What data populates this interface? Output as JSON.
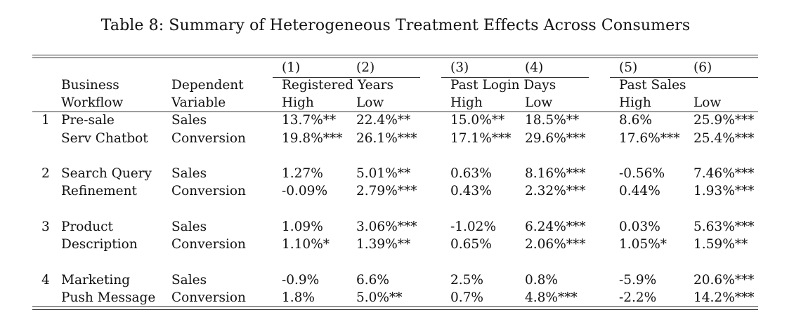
{
  "caption": "Table 8: Summary of Heterogeneous Treatment Effects Across Consumers",
  "header": {
    "col_numbers": [
      "(1)",
      "(2)",
      "(3)",
      "(4)",
      "(5)",
      "(6)"
    ],
    "business_workflow": [
      "Business",
      "Workflow"
    ],
    "dependent_variable": [
      "Dependent",
      "Variable"
    ],
    "groups": [
      "Registered Years",
      "Past Login Days",
      "Past Sales"
    ],
    "levels": [
      "High",
      "Low",
      "High",
      "Low",
      "High",
      "Low"
    ]
  },
  "rows": [
    {
      "index": "1",
      "workflow": "Pre-sale",
      "dv": "Sales",
      "values": [
        "13.7%**",
        "22.4%**",
        "15.0%**",
        "18.5%**",
        "8.6%",
        "25.9%***"
      ]
    },
    {
      "index": "",
      "workflow": "Serv Chatbot",
      "dv": "Conversion",
      "values": [
        "19.8%***",
        "26.1%***",
        "17.1%***",
        "29.6%***",
        "17.6%***",
        "25.4%***"
      ]
    },
    {
      "index": "2",
      "workflow": "Search Query",
      "dv": "Sales",
      "values": [
        "1.27%",
        "5.01%**",
        "0.63%",
        "8.16%***",
        "-0.56%",
        "7.46%***"
      ]
    },
    {
      "index": "",
      "workflow": "Refinement",
      "dv": "Conversion",
      "values": [
        "-0.09%",
        "2.79%***",
        "0.43%",
        "2.32%***",
        "0.44%",
        "1.93%***"
      ]
    },
    {
      "index": "3",
      "workflow": "Product",
      "dv": "Sales",
      "values": [
        "1.09%",
        "3.06%***",
        "-1.02%",
        "6.24%***",
        "0.03%",
        "5.63%***"
      ]
    },
    {
      "index": "",
      "workflow": "Description",
      "dv": "Conversion",
      "values": [
        "1.10%*",
        "1.39%**",
        "0.65%",
        "2.06%***",
        "1.05%*",
        "1.59%**"
      ]
    },
    {
      "index": "4",
      "workflow": "Marketing",
      "dv": "Sales",
      "values": [
        "-0.9%",
        "6.6%",
        "2.5%",
        "0.8%",
        "-5.9%",
        "20.6%***"
      ]
    },
    {
      "index": "",
      "workflow": "Push Message",
      "dv": "Conversion",
      "values": [
        "1.8%",
        "5.0%**",
        "0.7%",
        "4.8%***",
        "-2.2%",
        "14.2%***"
      ]
    }
  ]
}
